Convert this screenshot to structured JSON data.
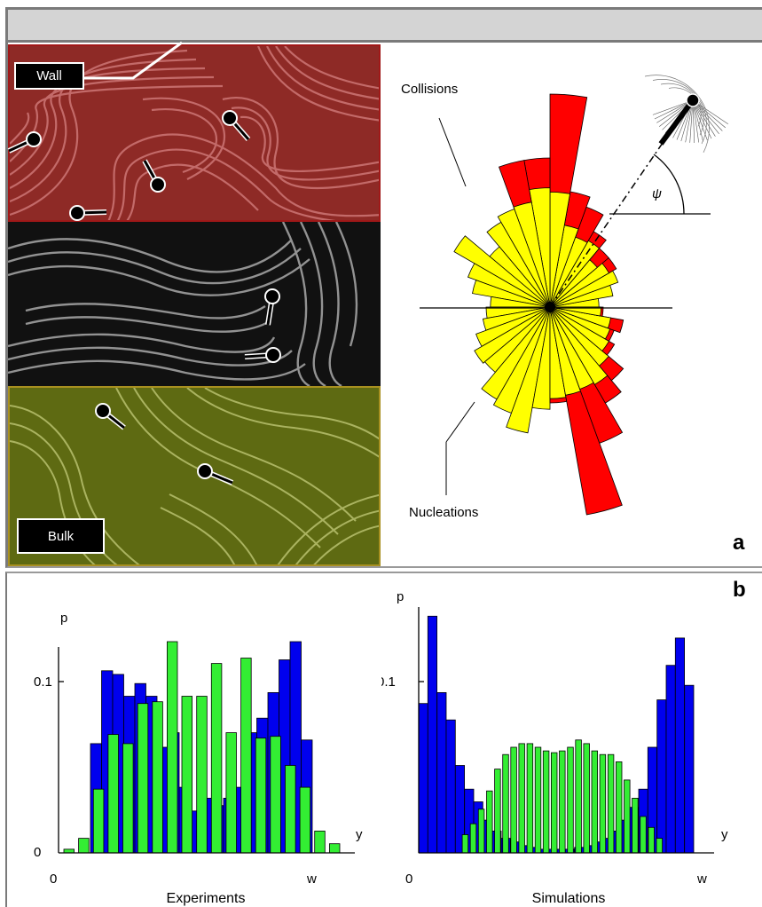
{
  "panel_a": {
    "letter": "a",
    "wall_label": "Wall",
    "bulk_label": "Bulk",
    "collisions_label": "Collisions",
    "nucleations_label": "Nucleations",
    "angle_symbol": "ψ",
    "colors": {
      "wall": "#c0392b",
      "middle": "#1a1a1a",
      "bulk": "#6b6b1a",
      "collisions": "#ff0000",
      "nucleations": "#ffff00"
    }
  },
  "panel_b": {
    "letter": "b",
    "colors": {
      "wall": "#0000ee",
      "bulk": "#33ee33"
    }
  },
  "chart_data": [
    {
      "type": "bar",
      "subtype": "polar-rose",
      "label": "a",
      "series": [
        {
          "name": "Collisions",
          "color": "#ff0000"
        },
        {
          "name": "Nucleations",
          "color": "#ffff00"
        }
      ],
      "angle_label": "ψ",
      "sectors": [
        {
          "deg": 5,
          "nuc": 0.23,
          "col": 0.23
        },
        {
          "deg": 15,
          "nuc": 0.3,
          "col": 0.3
        },
        {
          "deg": 25,
          "nuc": 0.34,
          "col": 0.34
        },
        {
          "deg": 35,
          "nuc": 0.32,
          "col": 0.36
        },
        {
          "deg": 45,
          "nuc": 0.29,
          "col": 0.36
        },
        {
          "deg": 55,
          "nuc": 0.36,
          "col": 0.41
        },
        {
          "deg": 65,
          "nuc": 0.35,
          "col": 0.5
        },
        {
          "deg": 75,
          "nuc": 0.39,
          "col": 0.55
        },
        {
          "deg": 85,
          "nuc": 0.54,
          "col": 1.0
        },
        {
          "deg": 95,
          "nuc": 0.56,
          "col": 0.7
        },
        {
          "deg": 105,
          "nuc": 0.5,
          "col": 0.7
        },
        {
          "deg": 115,
          "nuc": 0.49,
          "col": 0.49
        },
        {
          "deg": 125,
          "nuc": 0.46,
          "col": 0.46
        },
        {
          "deg": 135,
          "nuc": 0.37,
          "col": 0.37
        },
        {
          "deg": 145,
          "nuc": 0.52,
          "col": 0.52
        },
        {
          "deg": 155,
          "nuc": 0.41,
          "col": 0.41
        },
        {
          "deg": 165,
          "nuc": 0.37,
          "col": 0.37
        },
        {
          "deg": 175,
          "nuc": 0.28,
          "col": 0.28
        },
        {
          "deg": 185,
          "nuc": 0.3,
          "col": 0.3
        },
        {
          "deg": 195,
          "nuc": 0.32,
          "col": 0.32
        },
        {
          "deg": 205,
          "nuc": 0.37,
          "col": 0.37
        },
        {
          "deg": 215,
          "nuc": 0.41,
          "col": 0.41
        },
        {
          "deg": 225,
          "nuc": 0.4,
          "col": 0.4
        },
        {
          "deg": 235,
          "nuc": 0.5,
          "col": 0.5
        },
        {
          "deg": 245,
          "nuc": 0.53,
          "col": 0.53
        },
        {
          "deg": 255,
          "nuc": 0.6,
          "col": 0.6
        },
        {
          "deg": 265,
          "nuc": 0.48,
          "col": 0.48
        },
        {
          "deg": 275,
          "nuc": 0.43,
          "col": 0.45
        },
        {
          "deg": 285,
          "nuc": 0.42,
          "col": 0.99
        },
        {
          "deg": 295,
          "nuc": 0.41,
          "col": 0.68
        },
        {
          "deg": 305,
          "nuc": 0.42,
          "col": 0.52
        },
        {
          "deg": 315,
          "nuc": 0.36,
          "col": 0.45
        },
        {
          "deg": 325,
          "nuc": 0.32,
          "col": 0.35
        },
        {
          "deg": 335,
          "nuc": 0.3,
          "col": 0.32
        },
        {
          "deg": 345,
          "nuc": 0.29,
          "col": 0.35
        },
        {
          "deg": 355,
          "nuc": 0.24,
          "col": 0.25
        }
      ]
    },
    {
      "type": "bar",
      "title": "Experiments",
      "xlabel": "y",
      "ylabel": "p",
      "ylim": [
        0,
        0.135
      ],
      "y_ticks": [
        0,
        0.1
      ],
      "y_tick_labels": [
        "0",
        "0.1"
      ],
      "x_tick_labels": [
        "0",
        "w"
      ],
      "series": [
        {
          "color": "#0000ee",
          "values": [
            0,
            0,
            0,
            0,
            0.06,
            0.1,
            0.098,
            0.086,
            0.093,
            0.086,
            0.058,
            0.066,
            0.036,
            0.023,
            0.03,
            0.026,
            0.03,
            0.036,
            0.066,
            0.074,
            0.088,
            0.106,
            0.116,
            0.062,
            0.018,
            0.005,
            0,
            0
          ]
        },
        {
          "color": "#33ee33",
          "values": [
            0.002,
            0.008,
            0.035,
            0.065,
            0.06,
            0.082,
            0.083,
            0.116,
            0.086,
            0.086,
            0.104,
            0.066,
            0.107,
            0.063,
            0.064,
            0.048,
            0.036,
            0.012,
            0.005
          ]
        }
      ]
    },
    {
      "type": "bar",
      "title": "Simulations",
      "xlabel": "y",
      "ylabel": "p",
      "ylim": [
        0,
        0.135
      ],
      "y_ticks": [
        0.1
      ],
      "y_tick_labels": [
        "0.1"
      ],
      "x_tick_labels": [
        "0",
        "w"
      ],
      "series": [
        {
          "color": "#0000ee",
          "values": [
            0.082,
            0.13,
            0.088,
            0.073,
            0.048,
            0.035,
            0.028,
            0.018,
            0.012,
            0.008,
            0.006,
            0.004,
            0.003,
            0.002,
            0.002,
            0.002,
            0.002,
            0.003,
            0.004,
            0.006,
            0.008,
            0.012,
            0.018,
            0.025,
            0.035,
            0.058,
            0.084,
            0.103,
            0.118,
            0.092
          ]
        },
        {
          "color": "#33ee33",
          "values": [
            0.01,
            0.016,
            0.024,
            0.034,
            0.046,
            0.054,
            0.058,
            0.06,
            0.06,
            0.058,
            0.056,
            0.055,
            0.056,
            0.058,
            0.062,
            0.06,
            0.056,
            0.054,
            0.054,
            0.05,
            0.04,
            0.03,
            0.02,
            0.014,
            0.008
          ]
        }
      ]
    }
  ]
}
